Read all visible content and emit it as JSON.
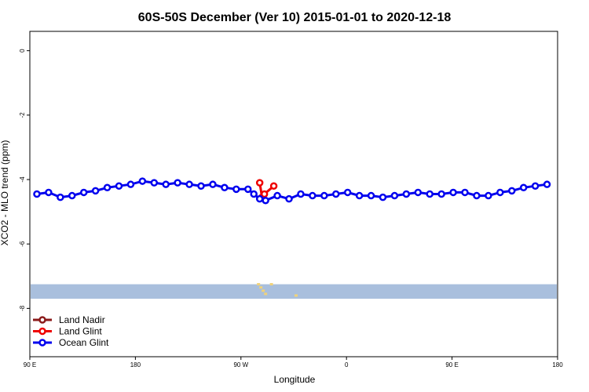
{
  "chart_data": {
    "type": "line",
    "title": "60S-50S December (Ver 10)   2015-01-01 to 2020-12-18",
    "xlabel": "Longitude",
    "ylabel": "XCO2 - MLO trend (ppm)",
    "x_ticks": [
      {
        "value": 90,
        "label": "90 E"
      },
      {
        "value": 180,
        "label": "180"
      },
      {
        "value": 270,
        "label": "90 W"
      },
      {
        "value": 360,
        "label": "0"
      },
      {
        "value": 450,
        "label": "90 E"
      },
      {
        "value": 540,
        "label": "180"
      }
    ],
    "y_ticks": [
      {
        "value": 0,
        "label": "0"
      },
      {
        "value": -2,
        "label": "-2"
      },
      {
        "value": -4,
        "label": "-4"
      },
      {
        "value": -6,
        "label": "-6"
      },
      {
        "value": -8,
        "label": "-8"
      }
    ],
    "xlim": [
      90,
      540
    ],
    "ylim": [
      -9.5,
      0.6
    ],
    "grid": false,
    "legend_position": "bottom-left",
    "land_band": {
      "y_range": [
        -7.25,
        -7.7
      ],
      "color": "#a9bfdd",
      "land_color": "#f0d27a"
    },
    "series": [
      {
        "name": "Land Nadir",
        "color": "#8b1a1a",
        "x": [],
        "y": []
      },
      {
        "name": "Land Glint",
        "color": "#ee0000",
        "x": [
          286,
          288,
          290,
          298
        ],
        "y": [
          -4.1,
          -4.55,
          -4.45,
          -4.2
        ]
      },
      {
        "name": "Ocean Glint",
        "color": "#0000ee",
        "x": [
          96,
          106,
          116,
          126,
          136,
          146,
          156,
          166,
          176,
          186,
          196,
          206,
          216,
          226,
          236,
          246,
          256,
          266,
          276,
          281,
          286,
          291,
          301,
          311,
          321,
          331,
          341,
          351,
          361,
          371,
          381,
          391,
          401,
          411,
          421,
          431,
          441,
          451,
          461,
          471,
          481,
          491,
          501,
          511,
          521,
          531
        ],
        "y": [
          -4.45,
          -4.4,
          -4.55,
          -4.5,
          -4.4,
          -4.35,
          -4.25,
          -4.2,
          -4.15,
          -4.05,
          -4.1,
          -4.15,
          -4.1,
          -4.15,
          -4.2,
          -4.15,
          -4.25,
          -4.3,
          -4.3,
          -4.45,
          -4.6,
          -4.65,
          -4.5,
          -4.6,
          -4.45,
          -4.5,
          -4.5,
          -4.45,
          -4.4,
          -4.5,
          -4.5,
          -4.55,
          -4.5,
          -4.45,
          -4.4,
          -4.45,
          -4.45,
          -4.4,
          -4.4,
          -4.5,
          -4.5,
          -4.4,
          -4.35,
          -4.25,
          -4.2,
          -4.15
        ]
      }
    ]
  }
}
